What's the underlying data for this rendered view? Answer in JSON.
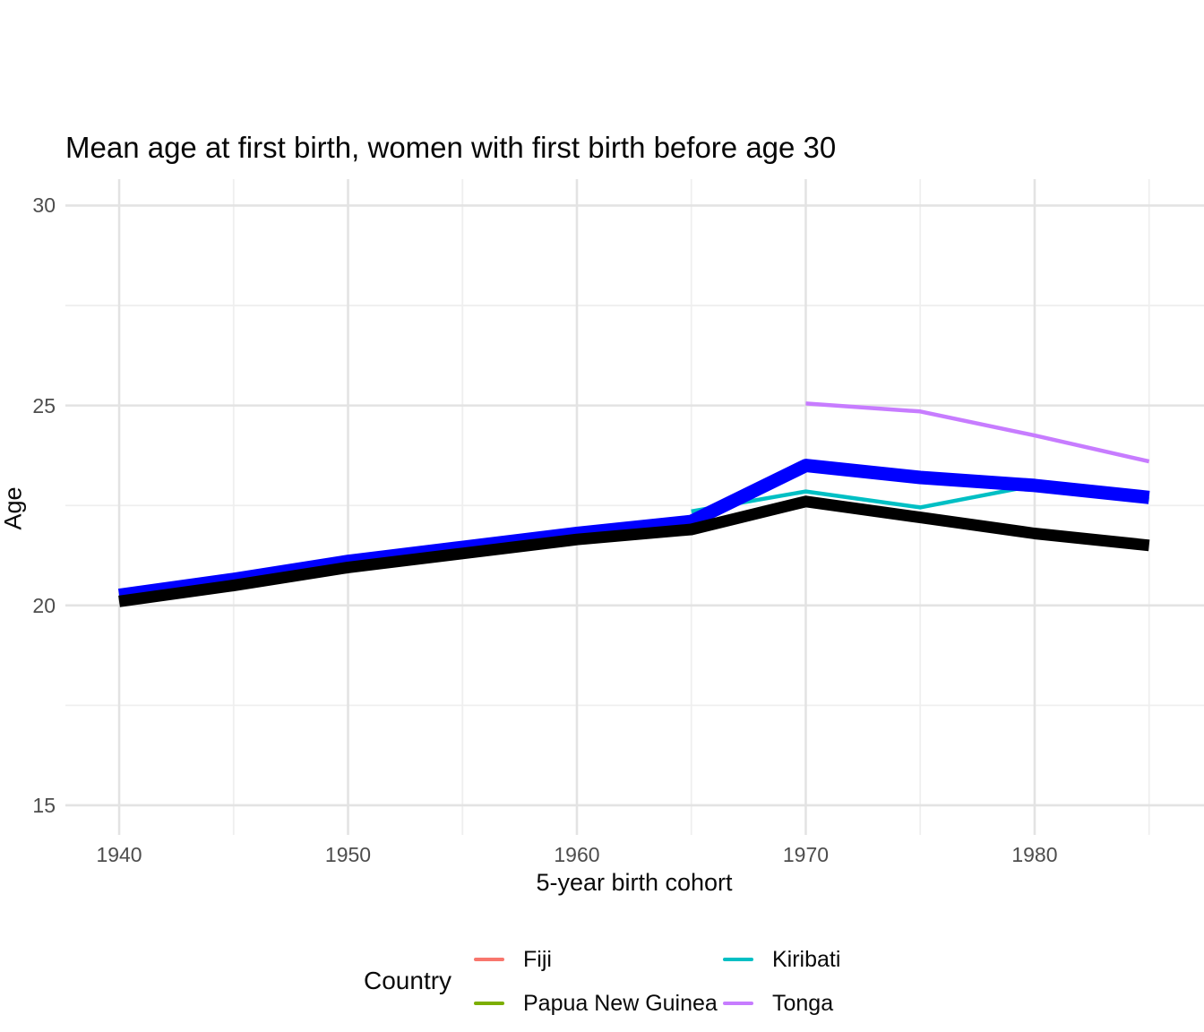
{
  "page_title": "Mean age at first birth, women with first birth before age 30",
  "axes": {
    "x_title": "5-year birth cohort",
    "y_title": "Age"
  },
  "legend": {
    "title": "Country",
    "items": [
      {
        "label": "Fiji",
        "color": "#F8766D"
      },
      {
        "label": "Papua New Guinea",
        "color": "#7CAE00"
      },
      {
        "label": "Kiribati",
        "color": "#00BFC4"
      },
      {
        "label": "Tonga",
        "color": "#C77CFF"
      }
    ]
  },
  "style": {
    "background": "#ffffff",
    "grid_major_color": "#e3e3e3",
    "grid_minor_color": "#efefef",
    "tick_label_color": "#4d4d4d",
    "overlay_blue": "#0000ff",
    "overlay_black": "#000000"
  },
  "chart_data": {
    "type": "line",
    "title": "Mean age at first birth, women with first birth before age 30",
    "xlabel": "5-year birth cohort",
    "ylabel": "Age",
    "legend_title": "Country",
    "legend_position": "bottom",
    "grid": true,
    "axis_lines": false,
    "xlim": [
      1937.65,
      1987.4
    ],
    "ylim": [
      14.26,
      30.66
    ],
    "x_major_ticks": [
      1940,
      1950,
      1960,
      1970,
      1980
    ],
    "x_tick_labels": [
      "1940",
      "1950",
      "1960",
      "1970",
      "1980"
    ],
    "x_minor_ticks": [
      1945,
      1955,
      1965,
      1975,
      1985
    ],
    "y_major_ticks": [
      15,
      20,
      25,
      30
    ],
    "y_tick_labels": [
      "15",
      "20",
      "25",
      "30"
    ],
    "y_minor_ticks": [
      17.5,
      22.5,
      27.5
    ],
    "series": [
      {
        "name": "Fiji",
        "color": "#F8766D",
        "stroke_width": 4.5,
        "in_legend": true,
        "points": [],
        "note": "not visibly distinct in the image; hidden beneath the thick overlay lines"
      },
      {
        "name": "Papua New Guinea",
        "color": "#7CAE00",
        "stroke_width": 4.5,
        "in_legend": true,
        "points": [],
        "note": "not visibly distinct in the image; hidden beneath the thick overlay lines"
      },
      {
        "name": "Kiribati",
        "color": "#00BFC4",
        "stroke_width": 4.5,
        "in_legend": true,
        "points": [
          [
            1965,
            22.35
          ],
          [
            1970,
            22.85
          ],
          [
            1975,
            22.45
          ],
          [
            1980,
            23.0
          ],
          [
            1985,
            22.65
          ]
        ]
      },
      {
        "name": "Tonga",
        "color": "#C77CFF",
        "stroke_width": 4.5,
        "in_legend": true,
        "points": [
          [
            1970,
            25.05
          ],
          [
            1975,
            24.85
          ],
          [
            1980,
            24.25
          ],
          [
            1985,
            23.6
          ]
        ]
      },
      {
        "name": "thick blue overlay line (no legend entry)",
        "color": "#0000FF",
        "stroke_width": 15,
        "in_legend": false,
        "points": [
          [
            1940,
            20.25
          ],
          [
            1945,
            20.65
          ],
          [
            1950,
            21.1
          ],
          [
            1955,
            21.45
          ],
          [
            1960,
            21.8
          ],
          [
            1965,
            22.1
          ],
          [
            1970,
            23.5
          ],
          [
            1975,
            23.2
          ],
          [
            1980,
            23.0
          ],
          [
            1985,
            22.7
          ]
        ]
      },
      {
        "name": "thick black overlay line (no legend entry)",
        "color": "#000000",
        "stroke_width": 13,
        "in_legend": false,
        "points": [
          [
            1940,
            20.1
          ],
          [
            1945,
            20.5
          ],
          [
            1950,
            20.95
          ],
          [
            1955,
            21.3
          ],
          [
            1960,
            21.65
          ],
          [
            1965,
            21.9
          ],
          [
            1970,
            22.6
          ],
          [
            1975,
            22.2
          ],
          [
            1980,
            21.8
          ],
          [
            1985,
            21.5
          ]
        ]
      }
    ]
  }
}
